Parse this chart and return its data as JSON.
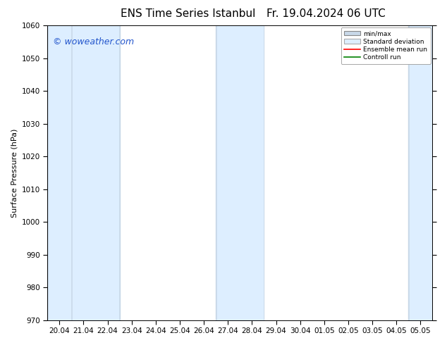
{
  "title_left": "ENS Time Series Istanbul",
  "title_right": "Fr. 19.04.2024 06 UTC",
  "ylabel": "Surface Pressure (hPa)",
  "ylim": [
    970,
    1060
  ],
  "yticks": [
    970,
    980,
    990,
    1000,
    1010,
    1020,
    1030,
    1040,
    1050,
    1060
  ],
  "xtick_labels": [
    "20.04",
    "21.04",
    "22.04",
    "23.04",
    "24.04",
    "25.04",
    "26.04",
    "27.04",
    "28.04",
    "29.04",
    "30.04",
    "01.05",
    "02.05",
    "03.05",
    "04.05",
    "05.05"
  ],
  "watermark": "© woweather.com",
  "watermark_color": "#2255cc",
  "background_color": "#ffffff",
  "band_color_outer": "#c8d8e8",
  "band_color_inner": "#ddeeff",
  "legend_labels": [
    "min/max",
    "Standard deviation",
    "Ensemble mean run",
    "Controll run"
  ],
  "title_fontsize": 11,
  "axis_fontsize": 8,
  "tick_fontsize": 7.5,
  "watermark_fontsize": 9
}
